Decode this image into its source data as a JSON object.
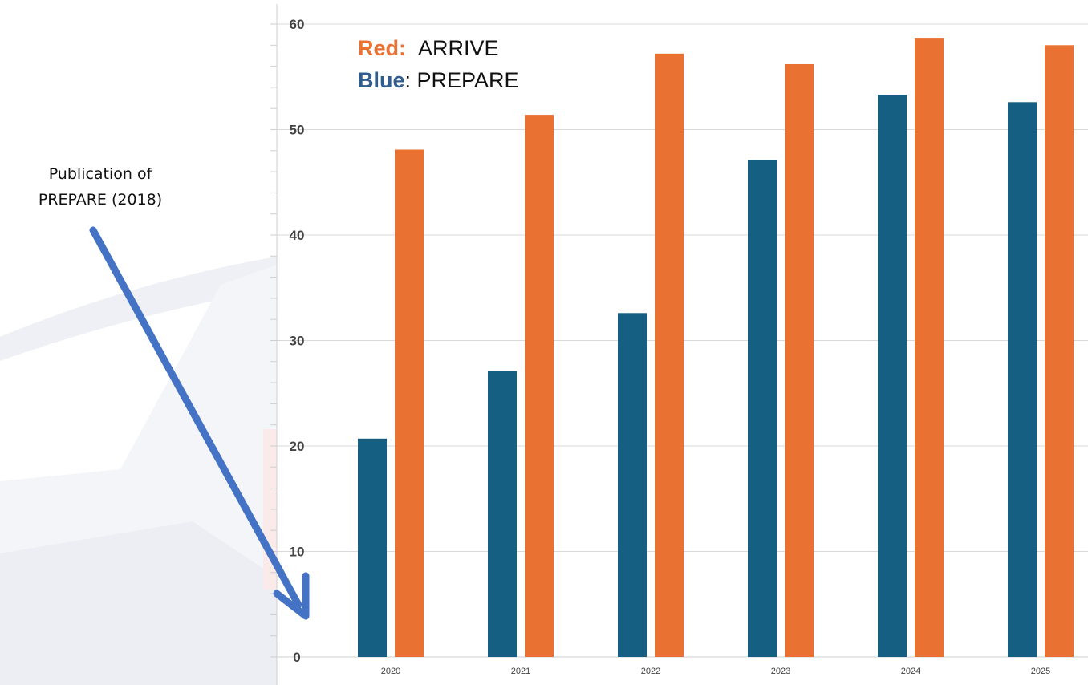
{
  "legend": [
    {
      "key": "Red:",
      "label": "ARRIVE",
      "color": "#E97132"
    },
    {
      "key": "Blue",
      "label": ": PREPARE",
      "color": "#2E5D8E"
    }
  ],
  "annotation": {
    "line1": "Publication of",
    "line2": "PREPARE (2018)",
    "arrow_color": "#4472C4"
  },
  "chart_data": {
    "type": "bar",
    "categories": [
      "2020",
      "2021",
      "2022",
      "2023",
      "2024",
      "2025"
    ],
    "series": [
      {
        "values": [
          20.7,
          27.1,
          32.6,
          47.1,
          53.3,
          52.6
        ],
        "color": "#156082"
      },
      {
        "values": [
          48.1,
          51.4,
          57.2,
          56.2,
          58.7,
          58.0
        ],
        "color": "#E97132"
      }
    ],
    "y_ticks": [
      "0",
      "10",
      "20",
      "30",
      "40",
      "50",
      "60"
    ],
    "ylim": [
      0,
      60
    ],
    "grid": true,
    "legend_position": "top-left"
  }
}
